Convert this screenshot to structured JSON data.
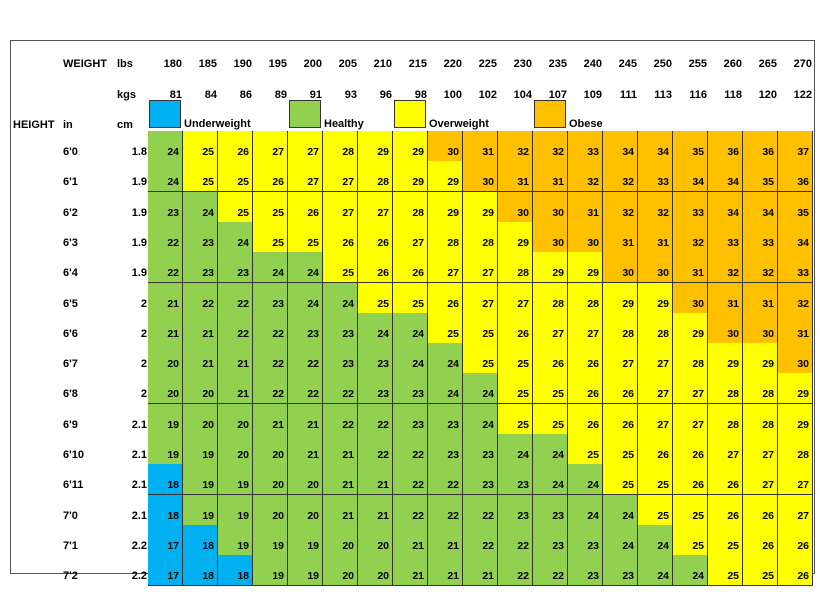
{
  "labels": {
    "weight": "WEIGHT",
    "lbs": "lbs",
    "kgs": "kgs",
    "height": "HEIGHT",
    "in": "in",
    "cm": "cm"
  },
  "lbs": [
    "180",
    "185",
    "190",
    "195",
    "200",
    "205",
    "210",
    "215",
    "220",
    "225",
    "230",
    "235",
    "240",
    "245",
    "250",
    "255",
    "260",
    "265",
    "270"
  ],
  "kgs": [
    "81",
    "84",
    "86",
    "89",
    "91",
    "93",
    "96",
    "98",
    "100",
    "102",
    "104",
    "107",
    "109",
    "111",
    "113",
    "116",
    "118",
    "120",
    "122"
  ],
  "legend": [
    {
      "label": "",
      "color": "#00b0f0"
    },
    {
      "label": "Underweight",
      "color": "#92d050"
    },
    {
      "label": "Healthy",
      "color": "#ffff00"
    },
    {
      "label": "Overweight",
      "color": "#ffc000"
    },
    {
      "label": "Obese",
      "color": ""
    }
  ],
  "category_colors": {
    "underweight": "#00b0f0",
    "healthy": "#92d050",
    "overweight": "#ffff00",
    "obese": "#ffc000"
  },
  "rows": [
    {
      "in": "6'0",
      "cm": "1.8",
      "bmi": [
        24,
        25,
        26,
        27,
        27,
        28,
        29,
        29,
        30,
        31,
        32,
        32,
        33,
        34,
        34,
        35,
        36,
        36,
        37
      ]
    },
    {
      "in": "6'1",
      "cm": "1.9",
      "bmi": [
        24,
        25,
        25,
        26,
        27,
        27,
        28,
        29,
        29,
        30,
        31,
        31,
        32,
        32,
        33,
        34,
        34,
        35,
        36
      ]
    },
    {
      "in": "6'2",
      "cm": "1.9",
      "bmi": [
        23,
        24,
        25,
        25,
        26,
        27,
        27,
        28,
        29,
        29,
        30,
        30,
        31,
        32,
        32,
        33,
        34,
        34,
        35
      ]
    },
    {
      "in": "6'3",
      "cm": "1.9",
      "bmi": [
        22,
        23,
        24,
        25,
        25,
        26,
        26,
        27,
        28,
        28,
        29,
        30,
        30,
        31,
        31,
        32,
        33,
        33,
        34
      ]
    },
    {
      "in": "6'4",
      "cm": "1.9",
      "bmi": [
        22,
        23,
        23,
        24,
        24,
        25,
        26,
        26,
        27,
        27,
        28,
        29,
        29,
        30,
        30,
        31,
        32,
        32,
        33
      ]
    },
    {
      "in": "6'5",
      "cm": "2",
      "bmi": [
        21,
        22,
        22,
        23,
        24,
        24,
        25,
        25,
        26,
        27,
        27,
        28,
        28,
        29,
        29,
        30,
        31,
        31,
        32
      ]
    },
    {
      "in": "6'6",
      "cm": "2",
      "bmi": [
        21,
        21,
        22,
        22,
        23,
        23,
        24,
        24,
        25,
        25,
        26,
        27,
        27,
        28,
        28,
        29,
        30,
        30,
        31
      ]
    },
    {
      "in": "6'7",
      "cm": "2",
      "bmi": [
        20,
        21,
        21,
        22,
        22,
        23,
        23,
        24,
        24,
        25,
        25,
        26,
        26,
        27,
        27,
        28,
        29,
        29,
        30
      ]
    },
    {
      "in": "6'8",
      "cm": "2",
      "bmi": [
        20,
        20,
        21,
        22,
        22,
        22,
        23,
        23,
        24,
        24,
        25,
        25,
        26,
        26,
        27,
        27,
        28,
        28,
        29
      ]
    },
    {
      "in": "6'9",
      "cm": "2.1",
      "bmi": [
        19,
        20,
        20,
        21,
        21,
        22,
        22,
        23,
        23,
        24,
        25,
        25,
        26,
        26,
        27,
        27,
        28,
        28,
        29
      ]
    },
    {
      "in": "6'10",
      "cm": "2.1",
      "bmi": [
        19,
        19,
        20,
        20,
        21,
        21,
        22,
        22,
        23,
        23,
        24,
        24,
        25,
        25,
        26,
        26,
        27,
        27,
        28
      ]
    },
    {
      "in": "6'11",
      "cm": "2.1",
      "bmi": [
        18,
        19,
        19,
        20,
        20,
        21,
        21,
        22,
        22,
        23,
        23,
        24,
        24,
        25,
        25,
        26,
        26,
        27,
        27
      ]
    },
    {
      "in": "7'0",
      "cm": "2.1",
      "bmi": [
        18,
        19,
        19,
        20,
        20,
        21,
        21,
        22,
        22,
        22,
        23,
        23,
        24,
        24,
        25,
        25,
        26,
        26,
        27
      ]
    },
    {
      "in": "7'1",
      "cm": "2.2",
      "bmi": [
        17,
        18,
        19,
        19,
        19,
        20,
        20,
        21,
        21,
        22,
        22,
        23,
        23,
        24,
        24,
        25,
        25,
        26,
        26
      ]
    },
    {
      "in": "7'2",
      "cm": "2.2",
      "bmi": [
        17,
        18,
        18,
        19,
        19,
        20,
        20,
        21,
        21,
        21,
        22,
        22,
        23,
        23,
        24,
        24,
        25,
        25,
        26
      ]
    }
  ]
}
